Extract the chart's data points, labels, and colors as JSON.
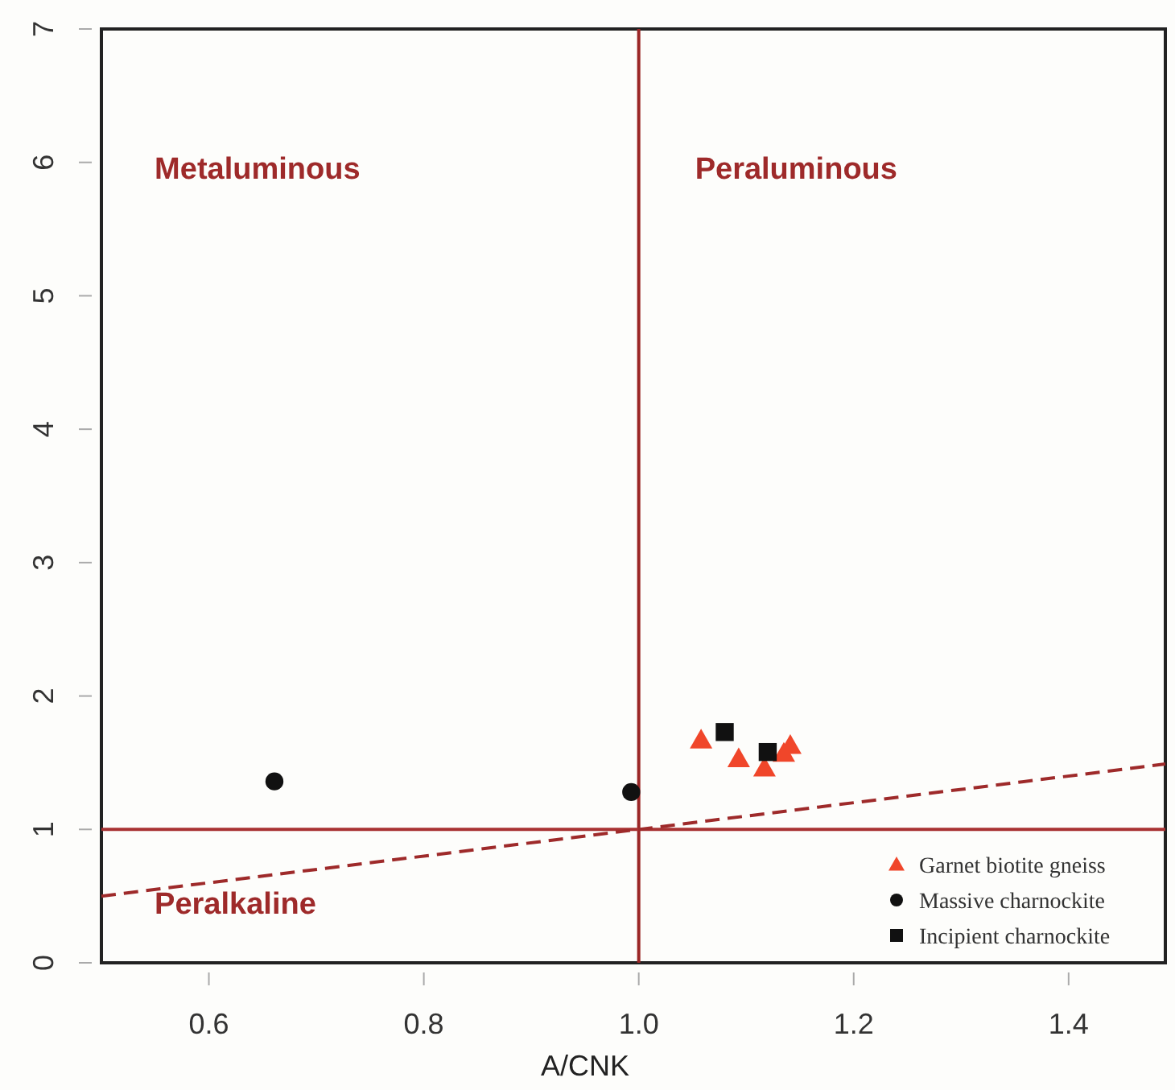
{
  "chart_data": {
    "type": "scatter",
    "xlabel": "A/CNK",
    "xlim": [
      0.5,
      1.49
    ],
    "ylim": [
      0,
      7
    ],
    "xticks": [
      0.6,
      0.8,
      {
        "value": 1.0,
        "label": "1.0"
      },
      1.2,
      1.4
    ],
    "yticks": [
      0,
      1,
      2,
      3,
      4,
      5,
      6,
      7
    ],
    "grid": false,
    "legend": "bottom right",
    "series": [
      {
        "name": "Garnet biotite gneiss",
        "color": "#f0462a",
        "marker": "triangle",
        "x": [
          1.058,
          1.093,
          1.117,
          1.135,
          1.141
        ],
        "values": [
          1.67,
          1.53,
          1.46,
          1.57,
          1.63
        ]
      },
      {
        "name": "Massive charnockite",
        "color": "#111111",
        "marker": "circle",
        "x": [
          0.661,
          0.993
        ],
        "values": [
          1.36,
          1.28
        ]
      },
      {
        "name": "Incipient charnockite",
        "color": "#111111",
        "marker": "square",
        "x": [
          1.08,
          1.12
        ],
        "values": [
          1.73,
          1.58
        ]
      },
      {
        "type": "line",
        "color": "#9e2a2a",
        "line_style": "dashed",
        "x": [
          0.5,
          1.49
        ],
        "values": [
          0.5,
          1.49
        ]
      }
    ],
    "ref_lines": [
      {
        "axis": "x",
        "value": 1.0,
        "color": "#9a2626"
      },
      {
        "axis": "y",
        "value": 1,
        "color": "#a83232"
      }
    ],
    "annotations": [
      "Metaluminous",
      "Peraluminous",
      "Peralkaline"
    ]
  }
}
